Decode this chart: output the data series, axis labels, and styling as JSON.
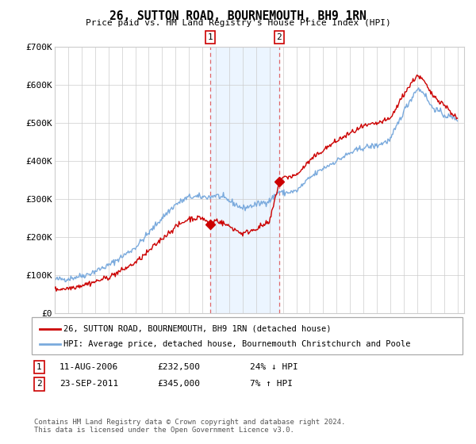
{
  "title": "26, SUTTON ROAD, BOURNEMOUTH, BH9 1RN",
  "subtitle": "Price paid vs. HM Land Registry's House Price Index (HPI)",
  "legend_line1": "26, SUTTON ROAD, BOURNEMOUTH, BH9 1RN (detached house)",
  "legend_line2": "HPI: Average price, detached house, Bournemouth Christchurch and Poole",
  "footnote": "Contains HM Land Registry data © Crown copyright and database right 2024.\nThis data is licensed under the Open Government Licence v3.0.",
  "sale1_date": "11-AUG-2006",
  "sale1_price": "£232,500",
  "sale1_hpi": "24% ↓ HPI",
  "sale2_date": "23-SEP-2011",
  "sale2_price": "£345,000",
  "sale2_hpi": "7% ↑ HPI",
  "red_color": "#cc0000",
  "blue_color": "#7aaadd",
  "shade_color": "#ddeeff",
  "grid_color": "#cccccc",
  "ylim": [
    0,
    700000
  ],
  "yticks": [
    0,
    100000,
    200000,
    300000,
    400000,
    500000,
    600000,
    700000
  ],
  "ytick_labels": [
    "£0",
    "£100K",
    "£200K",
    "£300K",
    "£400K",
    "£500K",
    "£600K",
    "£700K"
  ],
  "xmin": 1995.0,
  "xmax": 2025.5,
  "sale1_x": 2006.6,
  "sale1_y": 232500,
  "sale2_x": 2011.72,
  "sale2_y": 345000
}
